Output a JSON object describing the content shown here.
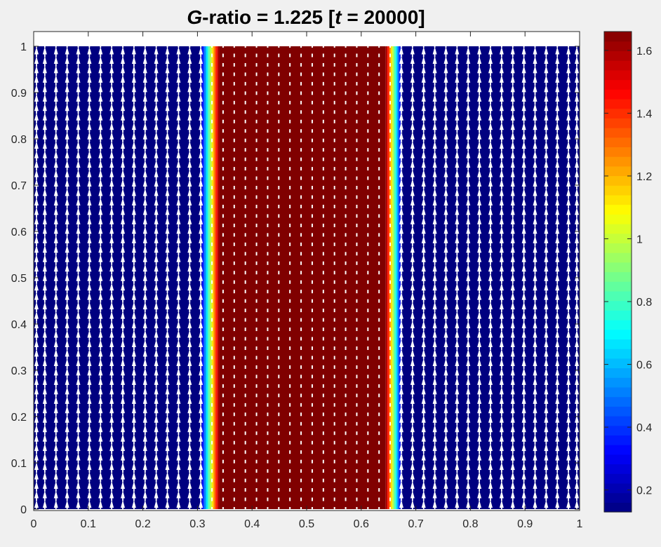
{
  "chart_data": {
    "type": "heatmap",
    "subtype": "contour-fill-with-quiver",
    "title": {
      "var1": "G",
      "mid": "-ratio = 1.225 [",
      "var2": "t",
      "end": " = 20000]"
    },
    "xlabel": "",
    "ylabel": "",
    "xlim": [
      0,
      1
    ],
    "ylim": [
      0,
      1
    ],
    "x_ticks": [
      "0",
      "0.1",
      "0.2",
      "0.3",
      "0.4",
      "0.5",
      "0.6",
      "0.7",
      "0.8",
      "0.9",
      "1"
    ],
    "y_ticks": [
      "0",
      "0.1",
      "0.2",
      "0.3",
      "0.4",
      "0.5",
      "0.6",
      "0.7",
      "0.8",
      "0.9",
      "1"
    ],
    "colormap": "jet",
    "colorbar": {
      "range": [
        0.13,
        1.66
      ],
      "ticks": [
        0.2,
        0.4,
        0.6,
        0.8,
        1,
        1.2,
        1.4,
        1.6
      ],
      "tick_labels": [
        "0.2",
        "0.4",
        "0.6",
        "0.8",
        "1",
        "1.2",
        "1.4",
        "1.6"
      ],
      "levels": 50,
      "placement": "right"
    },
    "field": {
      "description_x": "field varies only with x",
      "low_value": 0.13,
      "high_value": 1.66,
      "high_band_x": [
        0.34,
        0.645
      ],
      "transition_left_x": [
        0.305,
        0.34
      ],
      "transition_right_x": [
        0.645,
        0.675
      ]
    },
    "quiver": {
      "color": "#ffffff",
      "direction": "up",
      "columns": 50,
      "rows": 50,
      "low_region_arrow_length": "large",
      "high_region_arrow_length": "small"
    },
    "grid": false
  }
}
